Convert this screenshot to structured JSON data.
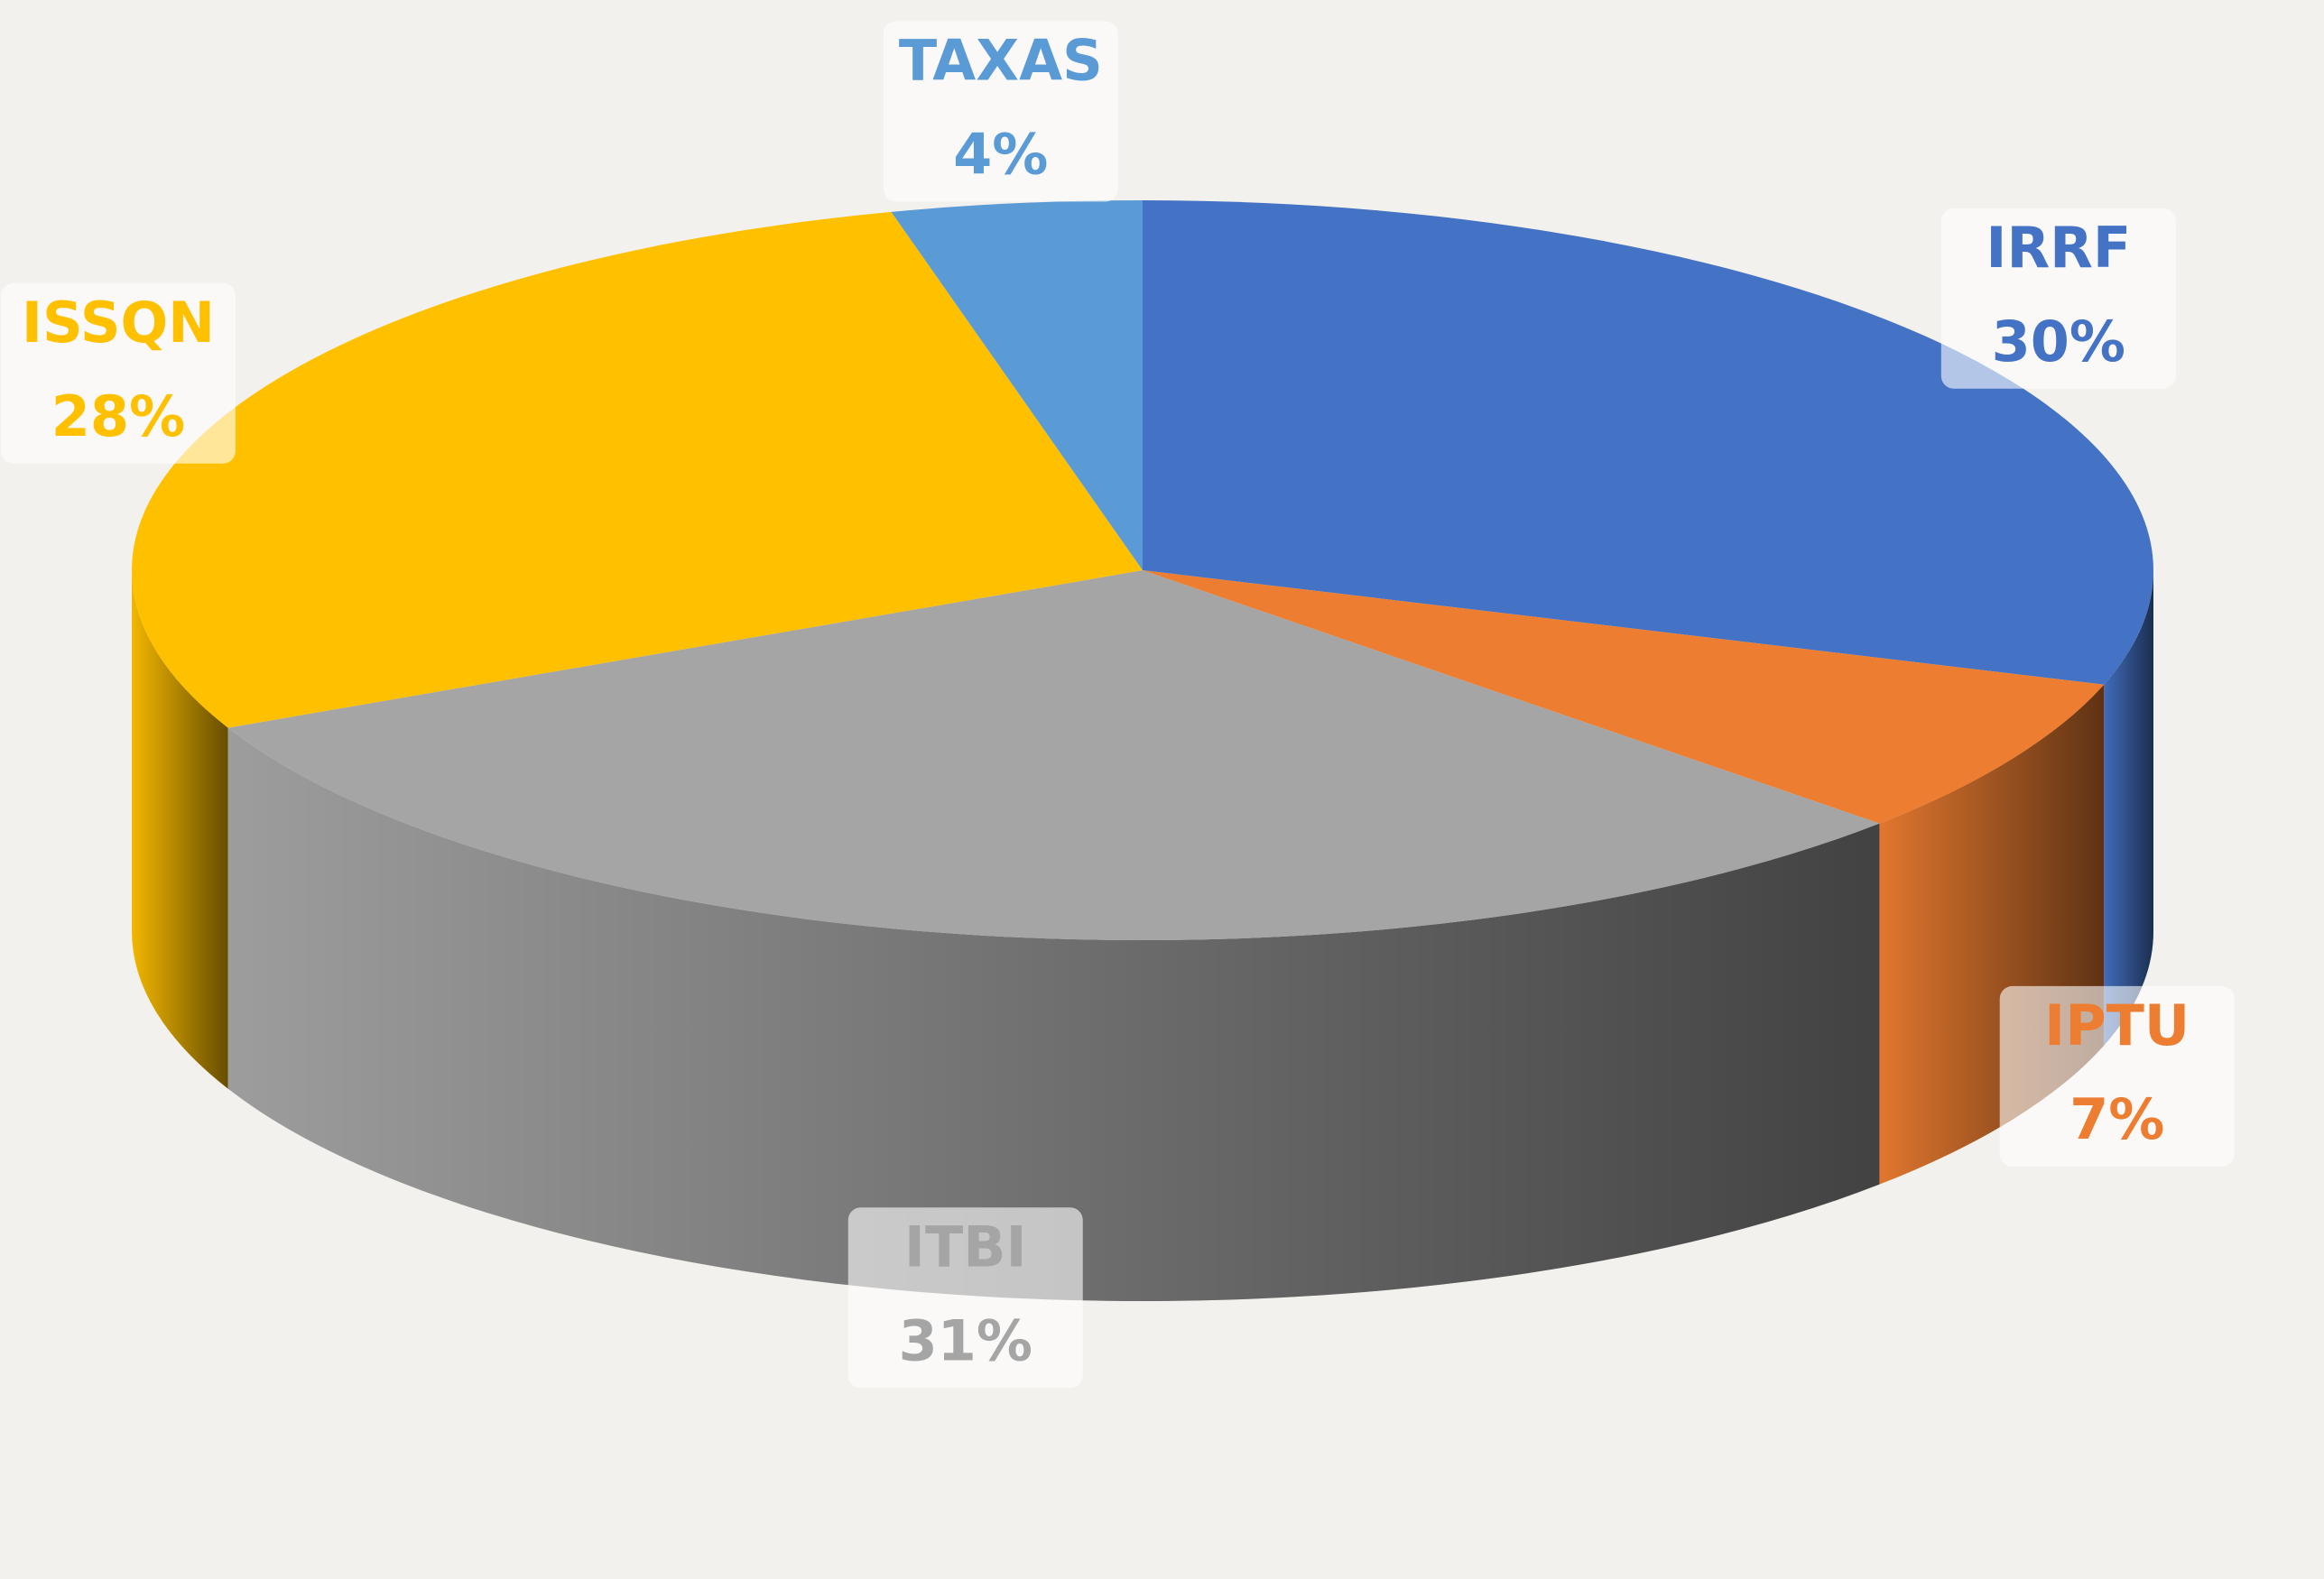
{
  "chart_data": {
    "type": "pie",
    "categories": [
      "IRRF",
      "IPTU",
      "ITBI",
      "ISSQN",
      "TAXAS"
    ],
    "values": [
      30,
      7,
      31,
      28,
      4
    ],
    "value_labels": [
      "30%",
      "7%",
      "31%",
      "28%",
      "4%"
    ],
    "colors": [
      "#4472c4",
      "#ed7d31",
      "#a5a5a5",
      "#ffc000",
      "#5b9bd5"
    ]
  }
}
